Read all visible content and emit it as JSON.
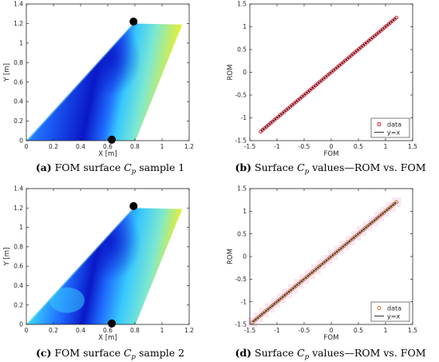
{
  "chart_data": [
    {
      "id": "a",
      "type": "heatmap",
      "title": "",
      "xlabel": "X [m]",
      "ylabel": "Y [m]",
      "xlim": [
        0,
        1.2
      ],
      "ylim": [
        0,
        1.4
      ],
      "xticks": [
        0,
        0.2,
        0.4,
        0.6,
        0.8,
        1.0,
        1.2
      ],
      "xtick_labels": [
        "0",
        "0.2",
        "0.4",
        "0.6",
        "0.8",
        "1",
        "1.2"
      ],
      "yticks": [
        0,
        0.2,
        0.4,
        0.6,
        0.8,
        1.0,
        1.2,
        1.4
      ],
      "ytick_labels": [
        "0",
        "0.2",
        "0.4",
        "0.6",
        "0.8",
        "1",
        "1.2",
        "1.4"
      ],
      "wing_outline": {
        "x": [
          0,
          0.787,
          1.149,
          0.804
        ],
        "y": [
          0,
          1.2,
          1.19,
          0
        ]
      },
      "markers": [
        {
          "x": 0.79,
          "y": 1.22
        },
        {
          "x": 0.63,
          "y": 0.01
        }
      ],
      "colormap": [
        "#0a18c8",
        "#1f6bff",
        "#37c8ff",
        "#7de8d0",
        "#f6f01a"
      ],
      "caption_prefix": "(a)",
      "caption_before": "FOM surface",
      "caption_math": "C",
      "caption_sub": "p",
      "caption_after": "sample 1"
    },
    {
      "id": "b",
      "type": "scatter",
      "title": "",
      "xlabel": "FOM",
      "ylabel": "ROM",
      "xlim": [
        -1.5,
        1.5
      ],
      "ylim": [
        -1.5,
        1.5
      ],
      "xticks": [
        -1.5,
        -1,
        -0.5,
        0,
        0.5,
        1,
        1.5
      ],
      "xtick_labels": [
        "-1.5",
        "-1",
        "-0.5",
        "0",
        "0.5",
        "1",
        "1.5"
      ],
      "yticks": [
        -1.5,
        -1,
        -0.5,
        0,
        0.5,
        1,
        1.5
      ],
      "ytick_labels": [
        "-1.5",
        "-1",
        "-0.5",
        "0",
        "0.5",
        "1",
        "1.5"
      ],
      "data_range": [
        -1.3,
        1.2
      ],
      "series": [
        {
          "name": "data",
          "color": "#d0021b"
        },
        {
          "name": "y=x",
          "color": "#000000"
        }
      ],
      "legend": "bottom-right",
      "caption_prefix": "(b)",
      "caption_before": "Surface",
      "caption_math": "C",
      "caption_sub": "p",
      "caption_after": "values—ROM vs. FOM"
    },
    {
      "id": "c",
      "type": "heatmap",
      "title": "",
      "xlabel": "X [m]",
      "ylabel": "Y [m]",
      "xlim": [
        0,
        1.2
      ],
      "ylim": [
        0,
        1.4
      ],
      "xticks": [
        0,
        0.2,
        0.4,
        0.6,
        0.8,
        1.0,
        1.2
      ],
      "xtick_labels": [
        "0",
        "0.2",
        "0.4",
        "0.6",
        "0.8",
        "1",
        "1.2"
      ],
      "yticks": [
        0,
        0.2,
        0.4,
        0.6,
        0.8,
        1.0,
        1.2,
        1.4
      ],
      "ytick_labels": [
        "0",
        "0.2",
        "0.4",
        "0.6",
        "0.8",
        "1",
        "1.2",
        "1.4"
      ],
      "wing_outline": {
        "x": [
          0,
          0.787,
          1.149,
          0.804
        ],
        "y": [
          0,
          1.2,
          1.19,
          0
        ]
      },
      "markers": [
        {
          "x": 0.79,
          "y": 1.22
        },
        {
          "x": 0.63,
          "y": 0.01
        }
      ],
      "colormap": [
        "#0a18c8",
        "#1f6bff",
        "#37c8ff",
        "#7de8d0",
        "#f6f01a"
      ],
      "caption_prefix": "(c)",
      "caption_before": "FOM surface",
      "caption_math": "C",
      "caption_sub": "p",
      "caption_after": "sample 2"
    },
    {
      "id": "d",
      "type": "scatter",
      "title": "",
      "xlabel": "FOM",
      "ylabel": "ROM",
      "xlim": [
        -1.5,
        1.5
      ],
      "ylim": [
        -1.5,
        1.5
      ],
      "xticks": [
        -1.5,
        -1,
        -0.5,
        0,
        0.5,
        1,
        1.5
      ],
      "xtick_labels": [
        "-1.5",
        "-1",
        "-0.5",
        "0",
        "0.5",
        "1",
        "1.5"
      ],
      "yticks": [
        -1.5,
        -1,
        -0.5,
        0,
        0.5,
        1,
        1.5
      ],
      "ytick_labels": [
        "-1.5",
        "-1",
        "-0.5",
        "0",
        "0.5",
        "1",
        "1.5"
      ],
      "data_range": [
        -1.45,
        1.2
      ],
      "series": [
        {
          "name": "data",
          "color": "#b5651d"
        },
        {
          "name": "y=x",
          "color": "#000000"
        }
      ],
      "legend": "bottom-right",
      "caption_prefix": "(d)",
      "caption_before": "Surface",
      "caption_math": "C",
      "caption_sub": "p",
      "caption_after": "values—ROM vs. FOM"
    }
  ]
}
